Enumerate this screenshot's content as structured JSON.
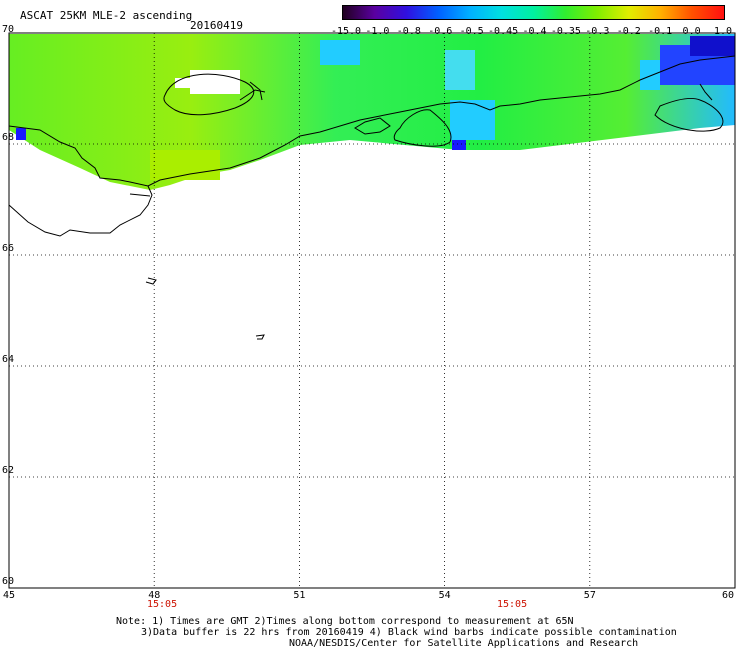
{
  "header": {
    "title": "ASCAT 25KM MLE-2 ascending",
    "date": "20160419"
  },
  "colorbar": {
    "labels": [
      "-15.0",
      "-1.0",
      "-0.8",
      "-0.6",
      "-0.5",
      "-0.45",
      "-0.4",
      "-0.35",
      "-0.3",
      "-0.2",
      "-0.1",
      "0.0",
      "1.0"
    ],
    "colors": [
      "#200020",
      "#5a00a0",
      "#3010e0",
      "#0060ff",
      "#00b0ff",
      "#00e0e0",
      "#00f0a0",
      "#30ee30",
      "#80ee00",
      "#e0ee00",
      "#ffb000",
      "#ff5000",
      "#ff1010"
    ]
  },
  "map": {
    "lon_ticks": [
      "45",
      "48",
      "51",
      "54",
      "57",
      "60"
    ],
    "lat_ticks": [
      "60",
      "62",
      "64",
      "66",
      "68",
      "70"
    ],
    "times": [
      "15:05",
      "15:05"
    ],
    "lon_range": [
      45,
      60
    ],
    "lat_range": [
      60,
      70
    ]
  },
  "notes": {
    "line1": "Note: 1) Times are GMT 2)Times along bottom correspond to measurement at 65N",
    "line2": "3)Data buffer is 22 hrs from 20160419 4) Black wind barbs indicate possible contamination",
    "line3": "NOAA/NESDIS/Center for Satellite Applications and Research"
  }
}
